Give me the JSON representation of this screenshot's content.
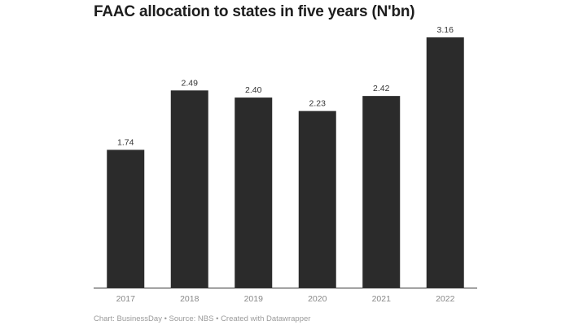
{
  "chart_data": {
    "type": "bar",
    "title": "FAAC allocation to states in five years (N'bn)",
    "categories": [
      "2017",
      "2018",
      "2019",
      "2020",
      "2021",
      "2022"
    ],
    "values": [
      1.74,
      2.49,
      2.4,
      2.23,
      2.42,
      3.16
    ],
    "value_labels": [
      "1.74",
      "2.49",
      "2.40",
      "2.23",
      "2.42",
      "3.16"
    ],
    "xlabel": "",
    "ylabel": "",
    "ylim": [
      0,
      3.16
    ],
    "grid": false,
    "bar_color": "#2b2b2b",
    "footer": "Chart: BusinessDay • Source: NBS • Created with Datawrapper"
  }
}
